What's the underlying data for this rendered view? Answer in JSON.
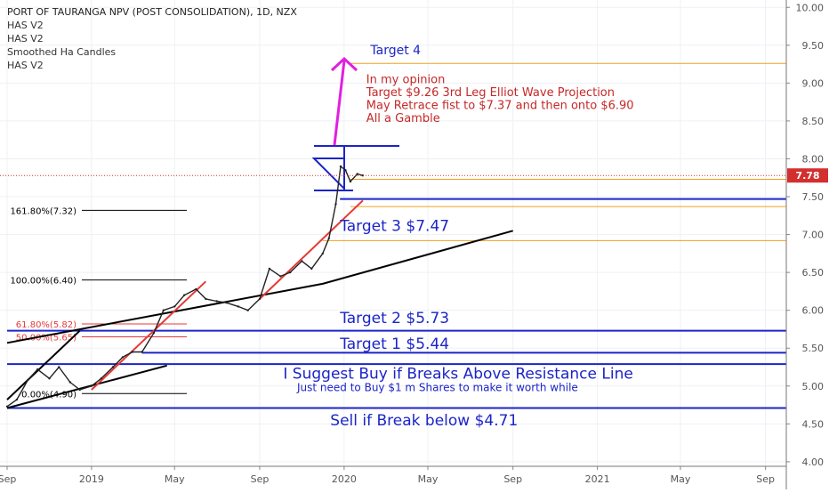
{
  "header": {
    "title": "PORT OF TAURANGA NPV (POST CONSOLIDATION), 1D, NZX",
    "indicators": [
      "HAS V2",
      "HAS V2",
      "Smoothed Ha Candles",
      "HAS V2"
    ]
  },
  "chart_data": {
    "type": "line",
    "x_axis": {
      "range": [
        "2018-09-01",
        "2021-10-01"
      ],
      "tick_labels": [
        {
          "date": "2018-09-01",
          "label": "Sep"
        },
        {
          "date": "2019-01-01",
          "label": "2019"
        },
        {
          "date": "2019-05-01",
          "label": "May"
        },
        {
          "date": "2019-09-01",
          "label": "Sep"
        },
        {
          "date": "2020-01-01",
          "label": "2020"
        },
        {
          "date": "2020-05-01",
          "label": "May"
        },
        {
          "date": "2020-09-01",
          "label": "Sep"
        },
        {
          "date": "2021-01-01",
          "label": "2021"
        },
        {
          "date": "2021-05-01",
          "label": "May"
        },
        {
          "date": "2021-09-01",
          "label": "Sep"
        }
      ]
    },
    "y_axis": {
      "position": "right",
      "ylim": [
        3.94,
        10.05
      ],
      "ticks": [
        4.0,
        4.5,
        5.0,
        5.5,
        6.0,
        6.5,
        7.0,
        7.5,
        8.0,
        8.5,
        9.0,
        9.5,
        10.0
      ],
      "tick_labels": [
        "4.00",
        "4.50",
        "5.00",
        "5.50",
        "6.00",
        "6.50",
        "7.00",
        "7.50",
        "8.00",
        "8.50",
        "9.00",
        "9.50",
        "10.00"
      ]
    },
    "last_price": {
      "value": 7.78,
      "label": "7.78",
      "color": "#d32f2f"
    },
    "series": [
      {
        "color": "#222222",
        "points": [
          [
            "2018-09-01",
            4.73
          ],
          [
            "2018-09-15",
            4.82
          ],
          [
            "2018-10-01",
            5.08
          ],
          [
            "2018-10-15",
            5.22
          ],
          [
            "2018-11-01",
            5.1
          ],
          [
            "2018-11-15",
            5.25
          ],
          [
            "2018-12-01",
            5.05
          ],
          [
            "2018-12-15",
            4.95
          ],
          [
            "2019-01-01",
            5.0
          ],
          [
            "2019-01-15",
            5.1
          ],
          [
            "2019-02-01",
            5.25
          ],
          [
            "2019-02-15",
            5.38
          ],
          [
            "2019-03-01",
            5.45
          ],
          [
            "2019-03-15",
            5.45
          ],
          [
            "2019-04-01",
            5.7
          ],
          [
            "2019-04-15",
            6.0
          ],
          [
            "2019-05-01",
            6.05
          ],
          [
            "2019-05-15",
            6.2
          ],
          [
            "2019-06-01",
            6.28
          ],
          [
            "2019-06-15",
            6.15
          ],
          [
            "2019-07-01",
            6.12
          ],
          [
            "2019-07-15",
            6.1
          ],
          [
            "2019-08-01",
            6.05
          ],
          [
            "2019-08-15",
            6.0
          ],
          [
            "2019-09-01",
            6.15
          ],
          [
            "2019-09-15",
            6.55
          ],
          [
            "2019-10-01",
            6.45
          ],
          [
            "2019-10-15",
            6.5
          ],
          [
            "2019-11-01",
            6.65
          ],
          [
            "2019-11-15",
            6.55
          ],
          [
            "2019-12-01",
            6.75
          ],
          [
            "2019-12-10",
            6.95
          ],
          [
            "2019-12-20",
            7.4
          ],
          [
            "2019-12-27",
            7.9
          ],
          [
            "2020-01-03",
            7.85
          ],
          [
            "2020-01-10",
            7.7
          ],
          [
            "2020-01-20",
            7.8
          ],
          [
            "2020-01-28",
            7.78
          ]
        ]
      }
    ],
    "price_levels": [
      {
        "value": 9.26,
        "color": "#f0a020",
        "from": "2020-01-10",
        "width": 1
      },
      {
        "value": 7.73,
        "color": "#f0a020",
        "from": "2020-01-10",
        "width": 1
      },
      {
        "value": 7.47,
        "color": "#1c24c8",
        "from": "2019-12-26",
        "width": 2
      },
      {
        "value": 7.37,
        "color": "#f0a020",
        "from": "2020-01-10",
        "width": 1
      },
      {
        "value": 6.92,
        "color": "#f0a020",
        "from": "2019-12-01",
        "width": 1
      },
      {
        "value": 5.73,
        "color": "#1c24c8",
        "from": "2018-09-01",
        "width": 2
      },
      {
        "value": 5.44,
        "color": "#1c24c8",
        "from": "2019-03-15",
        "width": 2
      },
      {
        "value": 5.29,
        "color": "#1c24c8",
        "from": "2018-09-01",
        "width": 2
      },
      {
        "value": 4.71,
        "color": "#1c24c8",
        "from": "2018-09-01",
        "width": 2
      }
    ],
    "fib_levels": [
      {
        "label": "161.80%(7.32)",
        "value": 7.32,
        "color": "#000000"
      },
      {
        "label": "100.00%(6.40)",
        "value": 6.4,
        "color": "#000000"
      },
      {
        "label": "61.80%(5.82)",
        "value": 5.82,
        "color": "#e53935"
      },
      {
        "label": "50.00%(5.65)",
        "value": 5.65,
        "color": "#e53935"
      },
      {
        "label": "0.00%(4.90)",
        "value": 4.9,
        "color": "#000000"
      }
    ],
    "trend_lines": [
      {
        "color": "#000000",
        "points": [
          [
            "2018-09-01",
            5.57
          ],
          [
            "2019-12-01",
            6.35
          ],
          [
            "2020-09-01",
            7.05
          ]
        ]
      },
      {
        "color": "#000000",
        "points": [
          [
            "2018-09-01",
            4.71
          ],
          [
            "2019-04-20",
            5.27
          ]
        ]
      },
      {
        "color": "#000000",
        "points": [
          [
            "2018-09-01",
            4.82
          ],
          [
            "2018-12-15",
            5.73
          ]
        ]
      },
      {
        "color": "#e53935",
        "points": [
          [
            "2019-01-01",
            4.95
          ],
          [
            "2019-06-15",
            6.38
          ]
        ]
      },
      {
        "color": "#e53935",
        "points": [
          [
            "2019-09-01",
            6.15
          ],
          [
            "2020-01-28",
            7.45
          ]
        ]
      }
    ],
    "annotations": [
      {
        "text": "Target 4",
        "date": "2020-02-08",
        "value": 9.38,
        "color": "#1c24c8",
        "size": 14
      },
      {
        "text": "In my opinion",
        "date": "2020-02-02",
        "value": 9.0,
        "color": "#c62828",
        "size": 13
      },
      {
        "text": "Target $9.26 3rd Leg Elliot Wave Projection",
        "date": "2020-02-02",
        "value": 8.83,
        "color": "#c62828",
        "size": 13
      },
      {
        "text": "May Retrace fist to $7.37 and then onto $6.90",
        "date": "2020-02-02",
        "value": 8.66,
        "color": "#c62828",
        "size": 13
      },
      {
        "text": "All a Gamble",
        "date": "2020-02-02",
        "value": 8.49,
        "color": "#c62828",
        "size": 13
      },
      {
        "text": "Target 3 $7.47",
        "date": "2019-12-26",
        "value": 7.05,
        "color": "#1c24c8",
        "size": 17
      },
      {
        "text": "Target 2 $5.73",
        "date": "2019-12-26",
        "value": 5.83,
        "color": "#1c24c8",
        "size": 17
      },
      {
        "text": "Target 1 $5.44",
        "date": "2019-12-26",
        "value": 5.49,
        "color": "#1c24c8",
        "size": 17
      },
      {
        "text": "I Suggest Buy if Breaks Above Resistance Line",
        "date": "2019-10-05",
        "value": 5.1,
        "color": "#1c24c8",
        "size": 17
      },
      {
        "text": "Just need to Buy $1 m Shares to make it worth while",
        "date": "2019-10-25",
        "value": 4.93,
        "color": "#1c24c8",
        "size": 12
      },
      {
        "text": "Sell if Break below  $4.71",
        "date": "2019-12-12",
        "value": 4.48,
        "color": "#1c24c8",
        "size": 17
      }
    ]
  }
}
